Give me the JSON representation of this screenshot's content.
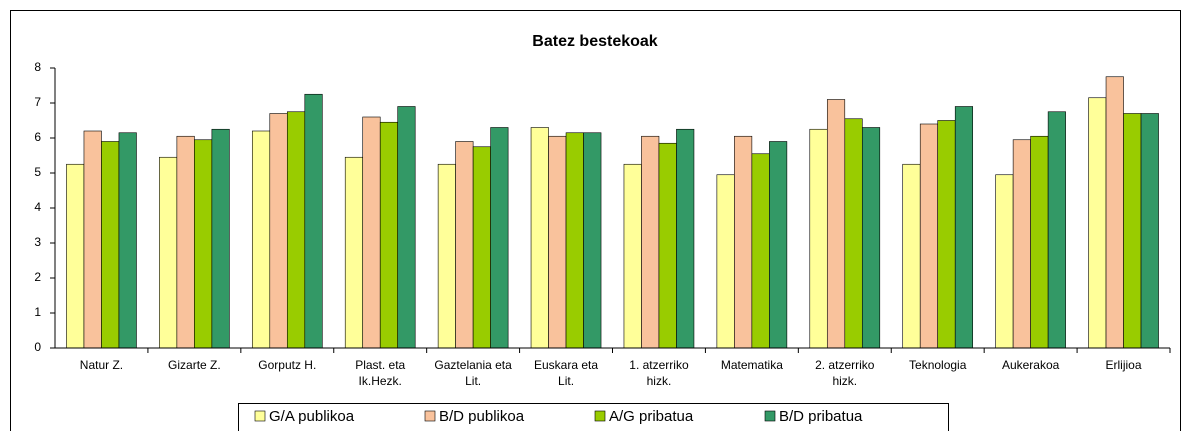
{
  "chart_data": {
    "type": "bar",
    "title": "Batez bestekoak",
    "categories": [
      "Natur Z.",
      "Gizarte Z.",
      "Gorputz H.",
      "Plast. eta Ik.Hezk.",
      "Gaztelania eta Lit.",
      "Euskara eta Lit.",
      "1. atzerriko hizk.",
      "Matematika",
      "2. atzerriko hizk.",
      "Teknologia",
      "Aukerakoa",
      "Erlijioa"
    ],
    "series": [
      {
        "name": "G/A publikoa",
        "color": "#ffff99",
        "values": [
          5.25,
          5.45,
          6.2,
          5.45,
          5.25,
          6.3,
          5.25,
          4.95,
          6.25,
          5.25,
          4.95,
          7.15
        ]
      },
      {
        "name": "B/D publikoa",
        "color": "#f9c29c",
        "values": [
          6.2,
          6.05,
          6.7,
          6.6,
          5.9,
          6.05,
          6.05,
          6.05,
          7.1,
          6.4,
          5.95,
          7.75
        ]
      },
      {
        "name": "A/G pribatua",
        "color": "#99cc00",
        "values": [
          5.9,
          5.95,
          6.75,
          6.45,
          5.75,
          6.15,
          5.85,
          5.55,
          6.55,
          6.5,
          6.05,
          6.7
        ]
      },
      {
        "name": "B/D pribatua",
        "color": "#339966",
        "values": [
          6.15,
          6.25,
          7.25,
          6.9,
          6.3,
          6.15,
          6.25,
          5.9,
          6.3,
          6.9,
          6.75,
          6.7
        ]
      }
    ],
    "ylim": [
      0,
      8
    ],
    "yticks": [
      0,
      1,
      2,
      3,
      4,
      5,
      6,
      7,
      8
    ],
    "grid": false,
    "legend": "bottom"
  }
}
